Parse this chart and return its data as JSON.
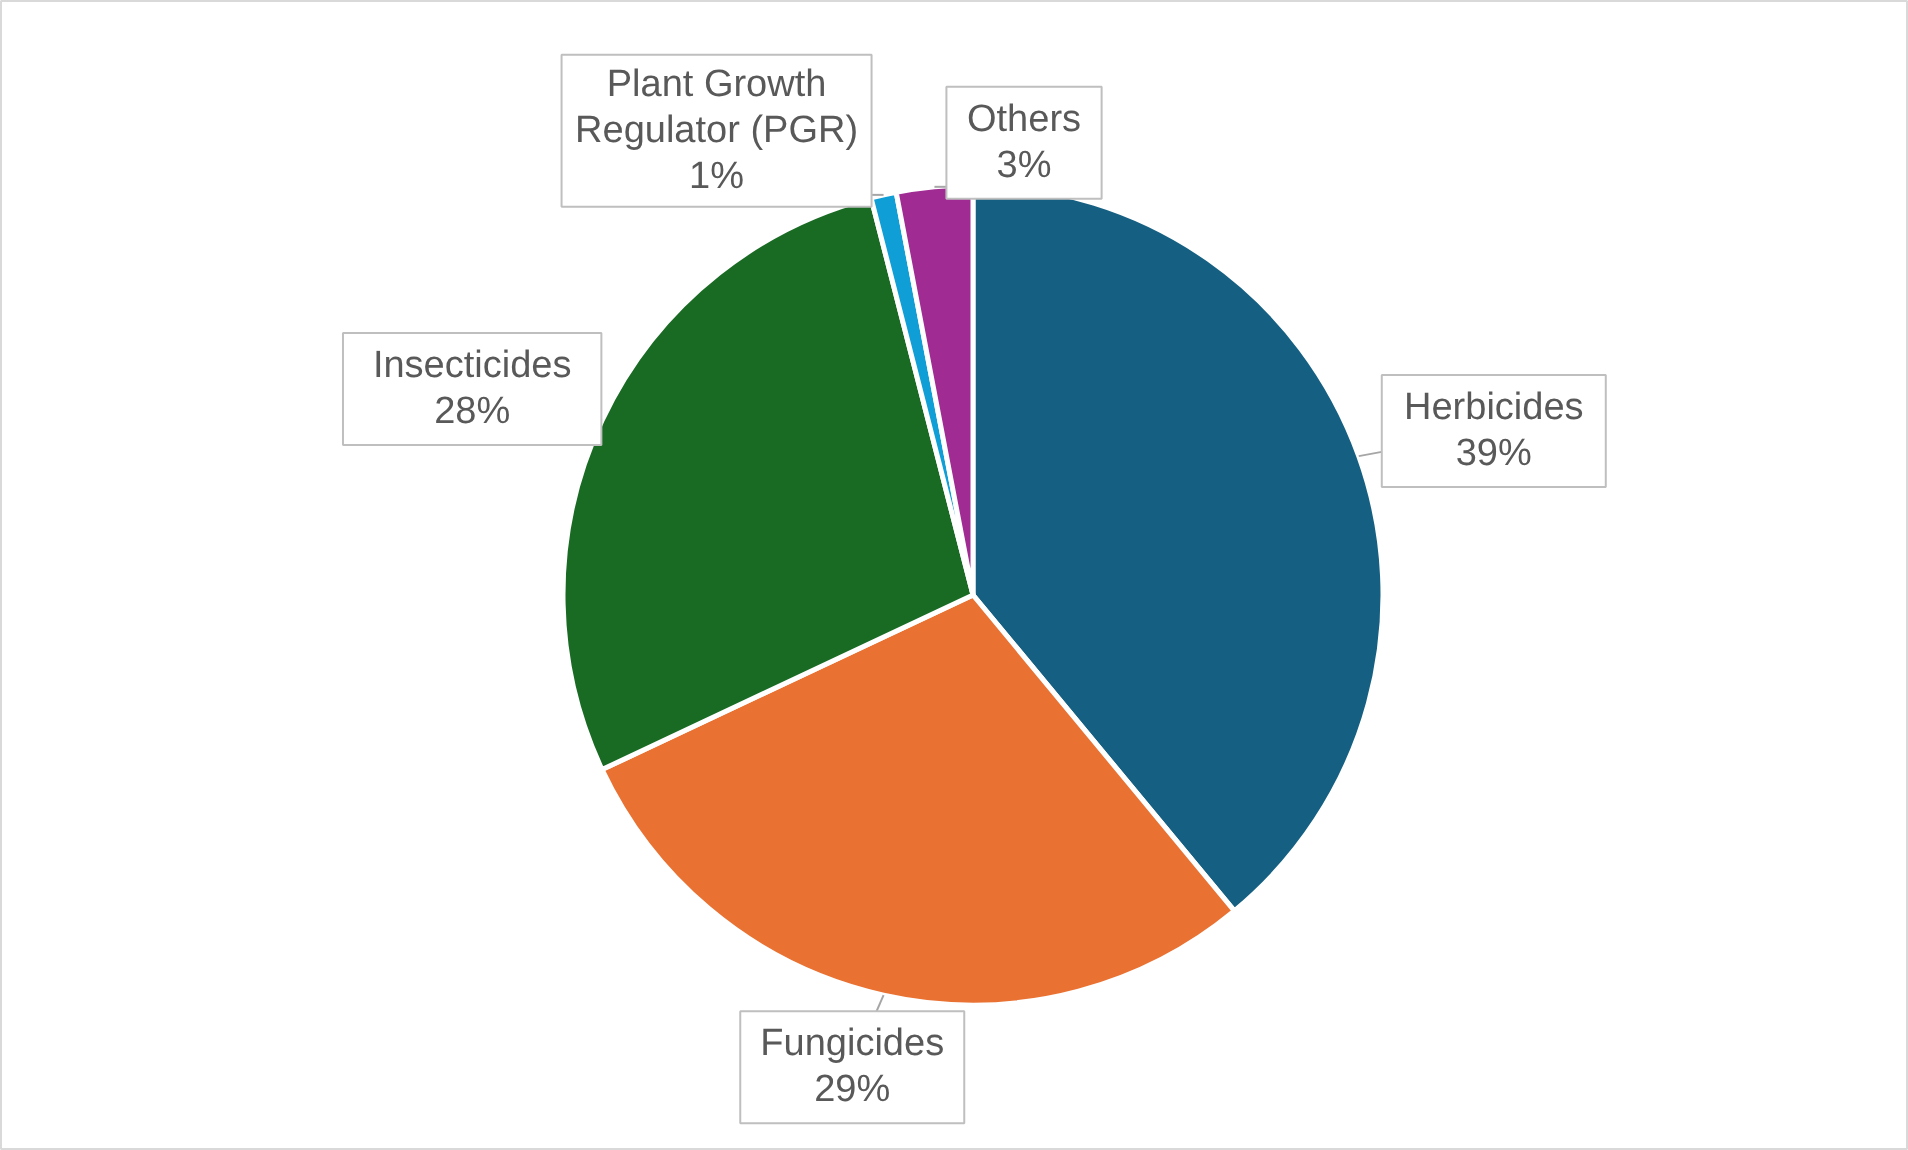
{
  "chart_data": {
    "type": "pie",
    "categories": [
      "Herbicides",
      "Fungicides",
      "Insecticides",
      "Plant Growth Regulator (PGR)",
      "Others"
    ],
    "values": [
      39,
      29,
      28,
      1,
      3
    ],
    "colors": [
      "#156082",
      "#e97132",
      "#196b24",
      "#0f9ed5",
      "#a02b93"
    ],
    "value_labels": [
      "39%",
      "29%",
      "28%",
      "1%",
      "3%"
    ]
  }
}
